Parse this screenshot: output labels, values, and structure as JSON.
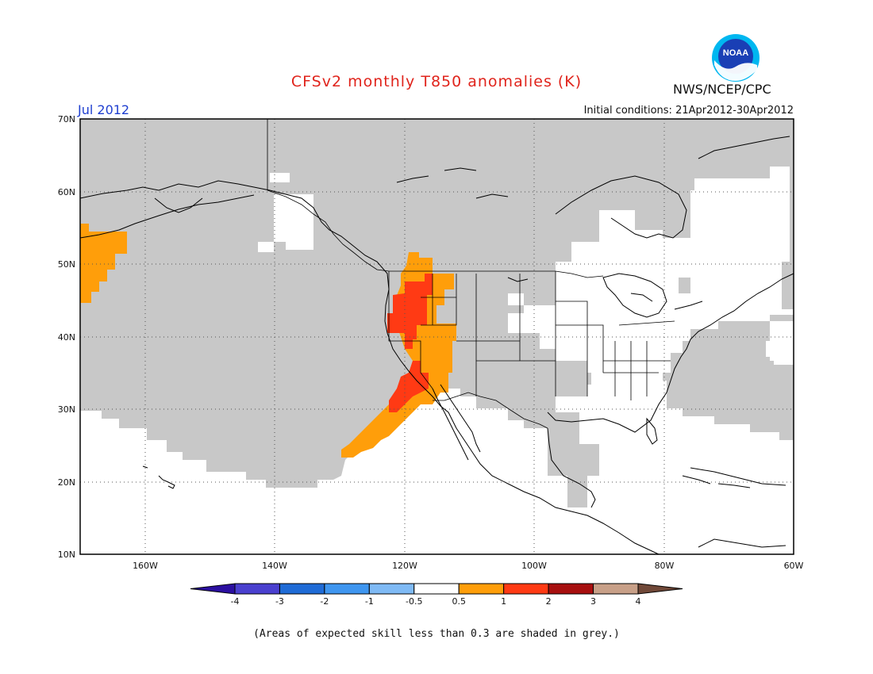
{
  "title": "CFSv2 monthly T850 anomalies (K)",
  "agency": "NWS/NCEP/CPC",
  "logo_text": "NOAA",
  "valid_month": "Jul 2012",
  "initial_conditions": "Initial conditions: 21Apr2012-30Apr2012",
  "skill_note": "(Areas of expected skill less than 0.3 are shaded in grey.)",
  "map": {
    "lat_labels": [
      "70N",
      "60N",
      "50N",
      "40N",
      "30N",
      "20N",
      "10N"
    ],
    "lon_labels": [
      "160W",
      "140W",
      "120W",
      "100W",
      "80W",
      "60W"
    ],
    "extent": {
      "lon_min": -170,
      "lon_max": -60,
      "lat_min": 10,
      "lat_max": 70
    },
    "grey_color": "#c8c8c8"
  },
  "colorbar": {
    "labels": [
      "-4",
      "-3",
      "-2",
      "-1",
      "-0.5",
      "0.5",
      "1",
      "2",
      "3",
      "4"
    ],
    "colors": [
      "#2b0fa0",
      "#4a40cf",
      "#1f6bd6",
      "#3f96f0",
      "#7fbaf5",
      "#ffffff",
      "#ff9e0a",
      "#ff3a14",
      "#a70f0f",
      "#c8a088",
      "#704838"
    ]
  }
}
